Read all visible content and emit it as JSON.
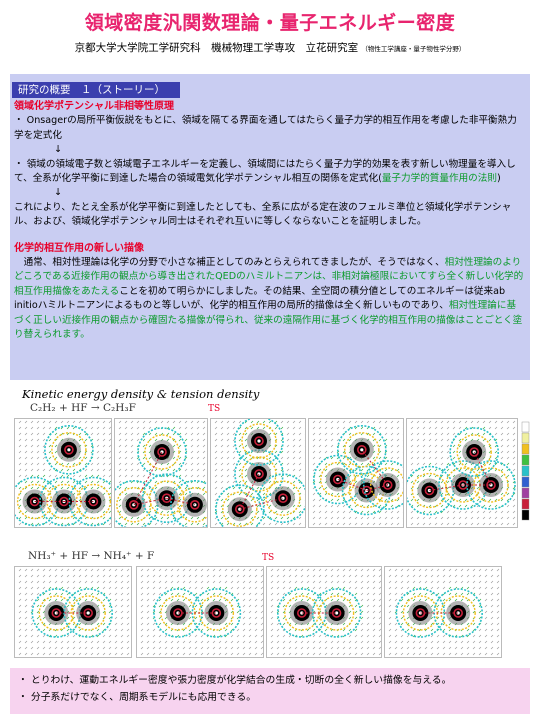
{
  "header": {
    "title": "領域密度汎関数理論・量子エネルギー密度",
    "affiliation": "京都大学大学院工学研究科　機械物理工学専攻　立花研究室",
    "affiliation_sub": "（物性工学講座・量子物性学分野）"
  },
  "overview": {
    "label": "研究の概要　１（ストーリー）",
    "section1_heading": "領域化学ポテンシャル非相等性原理",
    "p1": "・ Onsagerの局所平衡仮説をもとに、領域を隔てる界面を通してはたらく量子力学的相互作用を考慮した非平衡熱力学を定式化",
    "arrow1": "↓",
    "p2_a": "・ 領域の領域電子数と領域電子エネルギーを定義し、領域間にはたらく量子力学的効果を表す新しい物理量を導入して、全系が化学平衡に到達した場合の領域電気化学ポテンシャル相互の関係を定式化(",
    "p2_green": "量子力学的質量作用の法則",
    "p2_b": ")",
    "arrow2": "↓",
    "p3": "これにより、たとえ全系が化学平衡に到達したとしても、全系に広がる定在波のフェルミ準位と領域化学ポテンシャル、および、領域化学ポテンシャル同士はそれぞれ互いに等しくならないことを証明しました。",
    "section2_heading": "化学的相互作用の新しい描像",
    "p4_a": "　通常、相対性理論は化学の分野で小さな補正としてのみとらえられてきましたが、そうではなく、",
    "p4_g1": "相対性理論のよりどころである近接作用の観点から導き出されたQEDのハミルトニアンは、非相対論極限においてすら全く新しい化学的相互作用描像をあたえる",
    "p4_b": "ことを初めて明らかにしました。その結果、全空間の積分値としてのエネルギーは従来ab initioハミルトニアンによるものと等しいが、化学的相互作用の局所的描像は全く新しいものであり、",
    "p4_g2": "相対性理論に基づく正しい近接作用の観点から確固たる描像が得られ、従来の遠隔作用に基づく化学的相互作用の描像はことごとく塗り替えられます。"
  },
  "figure": {
    "title": "Kinetic energy density & tension density",
    "reaction1": "C₂H₂ + HF → C₂H₃F",
    "reaction2": "NH₃⁺ + HF → NH₄⁺ + F",
    "ts_label": "TS",
    "colors": {
      "core": "#000000",
      "ring": "#c8203a",
      "contour_outer": "#2ac1c9",
      "contour_inner": "#f0c020",
      "arrow": "#2aa63a"
    }
  },
  "summary": {
    "b1": "・ とりわけ、運動エネルギー密度や張力密度が化学結合の生成・切断の全く新しい描像を与える。",
    "b2": "・ 分子系だけでなく、周期系モデルにも応用できる。"
  }
}
